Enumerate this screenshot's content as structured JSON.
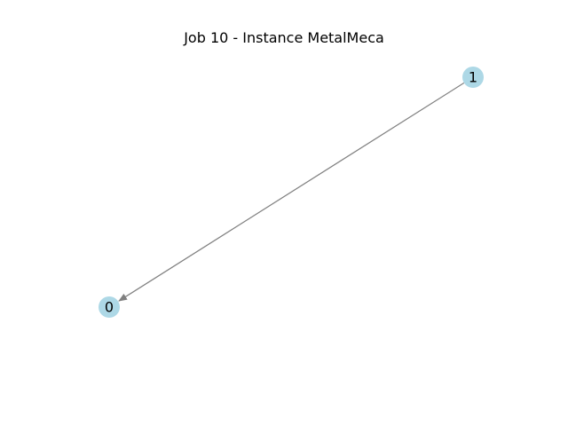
{
  "title": "Job 10 - Instance MetalMeca",
  "graph": {
    "nodes": [
      {
        "id": "0",
        "label": "0"
      },
      {
        "id": "1",
        "label": "1"
      }
    ],
    "edges": [
      {
        "from": "1",
        "to": "0"
      }
    ],
    "node_color": "#add8e6",
    "edge_color": "#808080",
    "label_color": "#000000"
  }
}
